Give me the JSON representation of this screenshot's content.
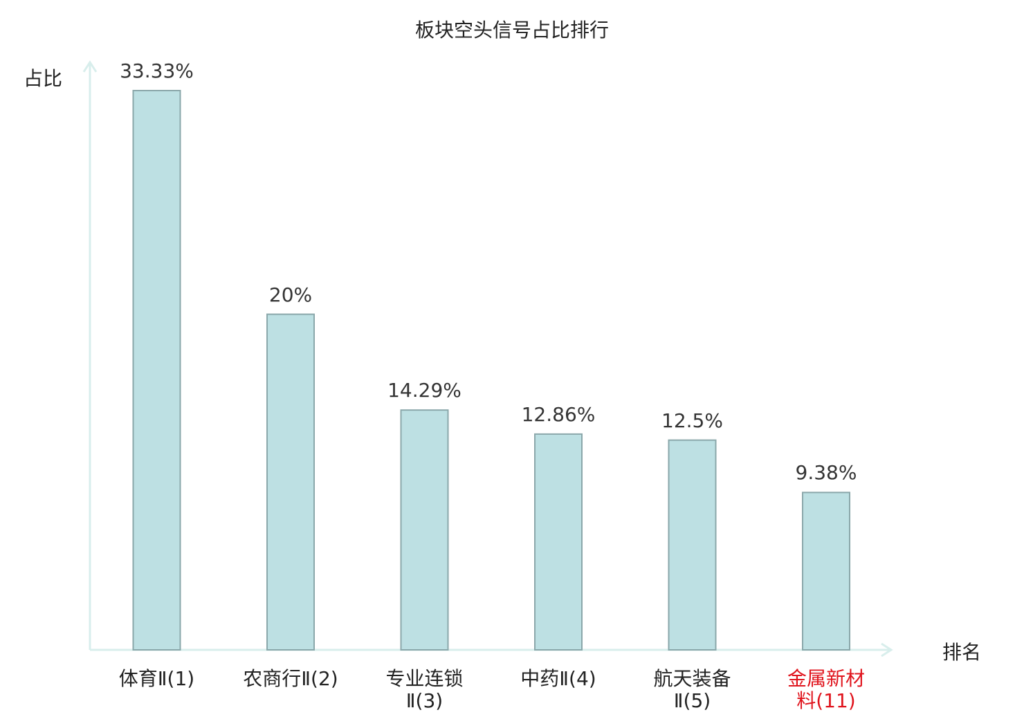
{
  "chart_data": {
    "type": "bar",
    "title": "板块空头信号占比排行",
    "ylabel": "占比",
    "xlabel": "排名",
    "categories": [
      "体育Ⅱ(1)",
      "农商行Ⅱ(2)",
      "专业连锁Ⅱ(3)",
      "中药Ⅱ(4)",
      "航天装备Ⅱ(5)",
      "金属新材料(11)"
    ],
    "category_lines": [
      [
        "体育Ⅱ(1)"
      ],
      [
        "农商行Ⅱ(2)"
      ],
      [
        "专业连锁",
        "Ⅱ(3)"
      ],
      [
        "中药Ⅱ(4)"
      ],
      [
        "航天装备",
        "Ⅱ(5)"
      ],
      [
        "金属新材",
        "料(11)"
      ]
    ],
    "values": [
      33.33,
      20,
      14.29,
      12.86,
      12.5,
      9.38
    ],
    "value_labels": [
      "33.33%",
      "20%",
      "14.29%",
      "12.86%",
      "12.5%",
      "9.38%"
    ],
    "highlight_index": 5,
    "ylim": [
      0,
      33.33
    ],
    "grid": false,
    "colors": {
      "bar_fill": "#bde0e3",
      "bar_stroke": "#8aa7aa",
      "axis": "#d8eeec",
      "highlight_label": "#e0141d"
    }
  }
}
